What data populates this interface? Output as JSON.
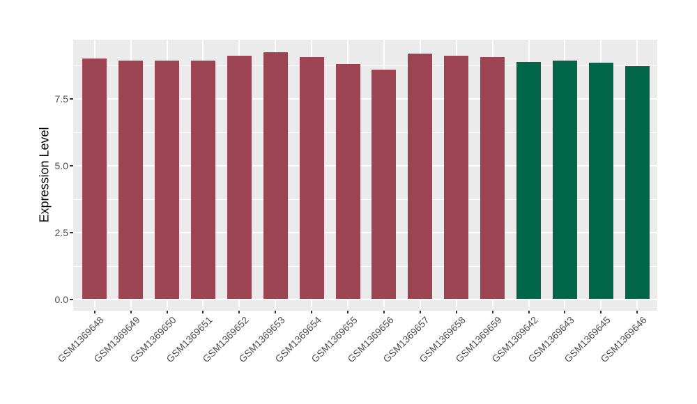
{
  "chart_data": {
    "type": "bar",
    "title": "",
    "ylabel": "Expression Level",
    "xlabel": "",
    "categories": [
      "GSM1369648",
      "GSM1369649",
      "GSM1369650",
      "GSM1369651",
      "GSM1369652",
      "GSM1369653",
      "GSM1369654",
      "GSM1369655",
      "GSM1369656",
      "GSM1369657",
      "GSM1369658",
      "GSM1369659",
      "GSM1369642",
      "GSM1369643",
      "GSM1369645",
      "GSM1369646"
    ],
    "values": [
      9.01,
      8.93,
      8.93,
      8.91,
      9.09,
      9.24,
      9.04,
      8.8,
      8.59,
      9.19,
      9.09,
      9.06,
      8.88,
      8.91,
      8.85,
      8.72
    ],
    "bar_colors": [
      "#9C4451",
      "#9C4451",
      "#9C4451",
      "#9C4451",
      "#9C4451",
      "#9C4451",
      "#9C4451",
      "#9C4451",
      "#9C4451",
      "#9C4451",
      "#9C4451",
      "#9C4451",
      "#006647",
      "#006647",
      "#006647",
      "#006647"
    ],
    "group_colors": {
      "red_group": "#9C4451",
      "green_group": "#006647"
    },
    "yticks": [
      0,
      2.5,
      5,
      7.5
    ],
    "ytick_labels": [
      "0.0",
      "2.5",
      "5.0",
      "7.5"
    ],
    "yticks_minor": [
      1.25,
      3.75,
      6.25,
      8.75
    ],
    "ylim": [
      -0.45,
      9.7
    ],
    "grid": "horizontal major+minor white, vertical major at each category",
    "legend": "none",
    "panel_bg": "#EBEBEB",
    "grid_color": "#FFFFFF",
    "axis_text_color": "#4D4D4D",
    "x_label_angle_deg": 45
  }
}
